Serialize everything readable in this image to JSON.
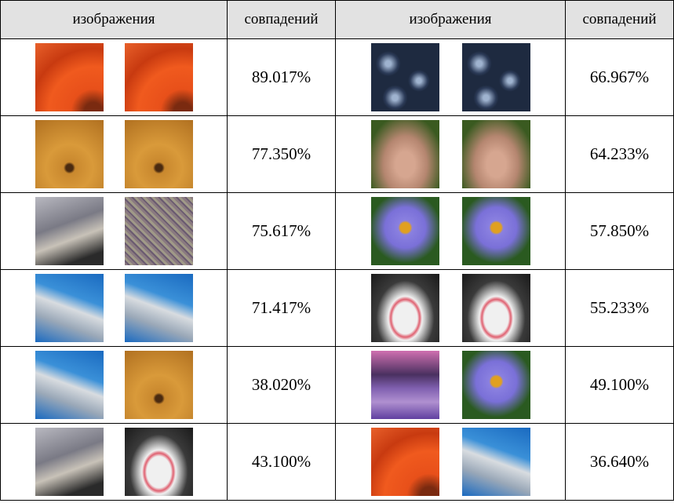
{
  "table": {
    "header": [
      "изображения",
      "совпадений",
      "изображения",
      "совпадений"
    ],
    "rows": [
      [
        "89.017%",
        "66.967%"
      ],
      [
        "77.350%",
        "64.233%"
      ],
      [
        "75.617%",
        "57.850%"
      ],
      [
        "71.417%",
        "55.233%"
      ],
      [
        "38.020%",
        "49.100%"
      ],
      [
        "43.100%",
        "36.640%"
      ]
    ]
  }
}
